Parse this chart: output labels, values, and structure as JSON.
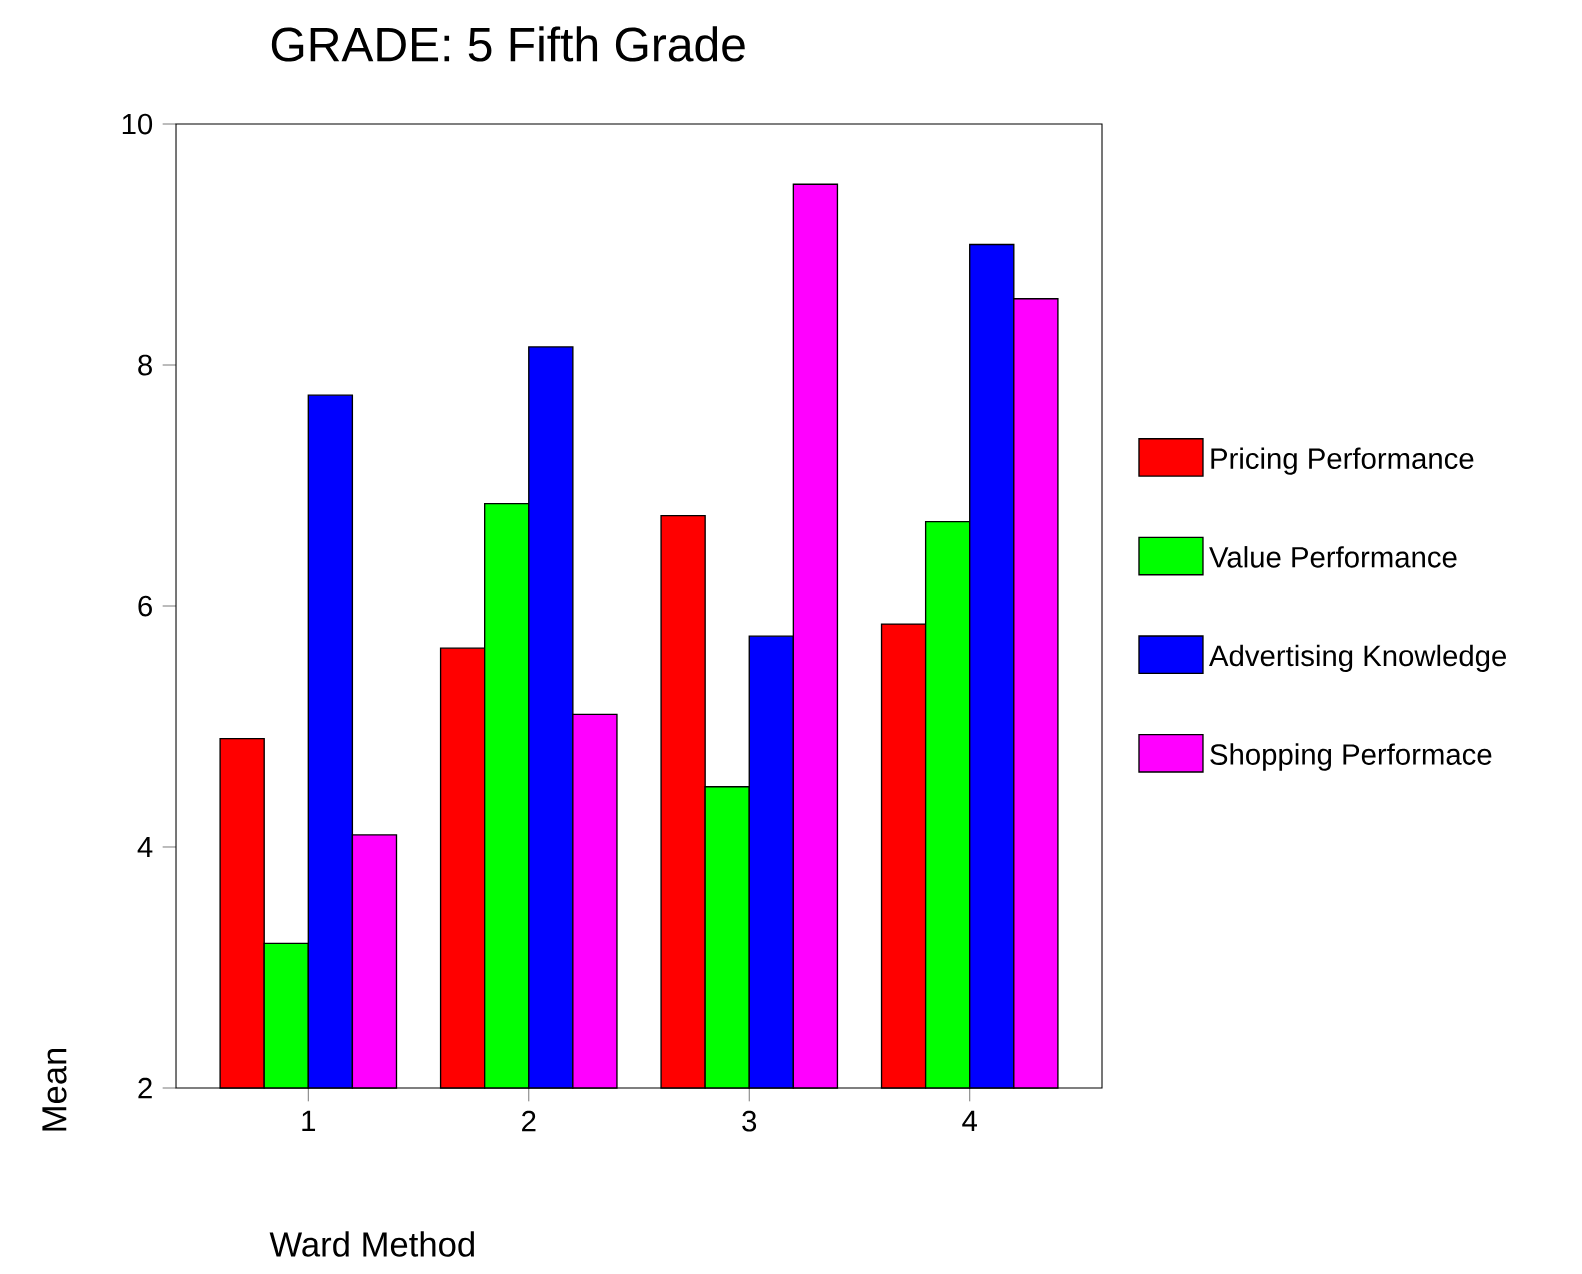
{
  "chart_data": {
    "type": "bar",
    "title": "GRADE:      5   Fifth Grade",
    "xlabel": "Ward Method",
    "ylabel": "Mean",
    "categories": [
      "1",
      "2",
      "3",
      "4"
    ],
    "series": [
      {
        "name": "Pricing Performance",
        "color": "#ff0000",
        "values": [
          4.9,
          5.65,
          6.75,
          5.85
        ]
      },
      {
        "name": "Value Performance",
        "color": "#00ff00",
        "values": [
          3.2,
          6.85,
          4.5,
          6.7
        ]
      },
      {
        "name": "Advertising Knowledge",
        "color": "#0000ff",
        "values": [
          7.75,
          8.15,
          5.75,
          9.0
        ]
      },
      {
        "name": "Shopping Performace",
        "color": "#ff00ff",
        "values": [
          4.1,
          5.1,
          9.5,
          8.55
        ]
      }
    ],
    "ylim": [
      2,
      10
    ],
    "yticks": [
      2,
      4,
      6,
      8,
      10
    ],
    "grid": false,
    "legend": "right"
  }
}
